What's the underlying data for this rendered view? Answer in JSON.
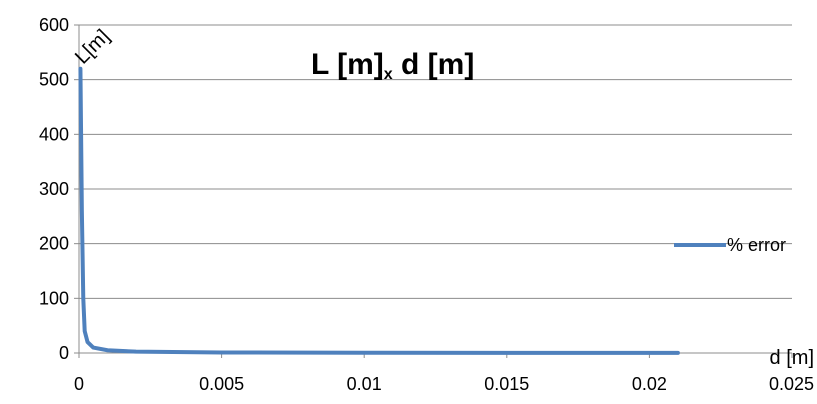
{
  "chart_data": {
    "type": "line",
    "title": {
      "main": "L [m]",
      "subscript": "x",
      "tail": " d [m]"
    },
    "xlabel": "d [m]",
    "ylabel": "L[m]",
    "xlim": [
      0,
      0.025
    ],
    "ylim": [
      0,
      600
    ],
    "x_ticks": [
      0,
      0.005,
      0.01,
      0.015,
      0.02,
      0.025
    ],
    "x_tick_labels": [
      "0",
      "0.005",
      "0.01",
      "0.015",
      "0.02",
      "0.025"
    ],
    "y_ticks": [
      0,
      100,
      200,
      300,
      400,
      500,
      600
    ],
    "y_tick_labels": [
      "0",
      "100",
      "200",
      "300",
      "400",
      "500",
      "600"
    ],
    "grid": "horizontal",
    "legend_position": "right",
    "series": [
      {
        "name": "% error",
        "color": "#4f81bd",
        "x": [
          5e-05,
          0.0001,
          0.00015,
          0.0002,
          0.0003,
          0.0005,
          0.001,
          0.002,
          0.005,
          0.01,
          0.015,
          0.021
        ],
        "y": [
          520,
          260,
          100,
          40,
          20,
          10,
          5,
          2.5,
          1,
          0.5,
          0.3,
          0.2
        ]
      }
    ]
  }
}
